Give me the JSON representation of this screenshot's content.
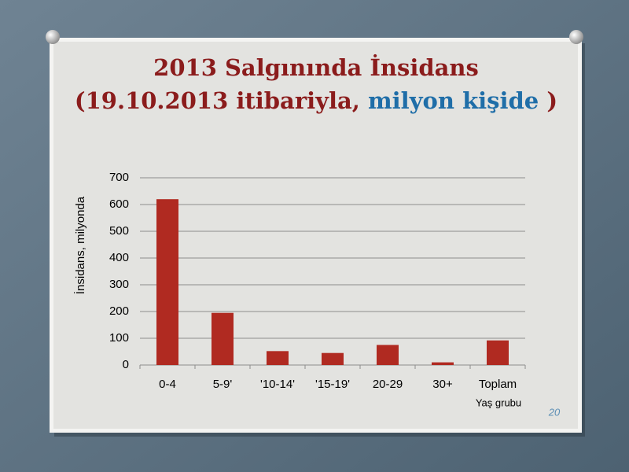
{
  "chart_data": {
    "type": "bar",
    "title": "2013 Salgınında İnsidans",
    "subtitle_parts": [
      "(19.10.2013 itibariyla, ",
      "milyon kişide",
      " )"
    ],
    "y_label": "İnsidans, milyonda",
    "x_label": "Yaş grubu",
    "categories": [
      "0-4",
      "5-9'",
      "'10-14'",
      "'15-19'",
      "20-29",
      "30+",
      "Toplam"
    ],
    "values": [
      620,
      195,
      52,
      45,
      75,
      10,
      92
    ],
    "color": "#b02a21",
    "ylim": [
      0,
      700
    ],
    "yticks": [
      0,
      100,
      200,
      300,
      400,
      500,
      600,
      700
    ],
    "grid": true
  },
  "page_number": "20"
}
